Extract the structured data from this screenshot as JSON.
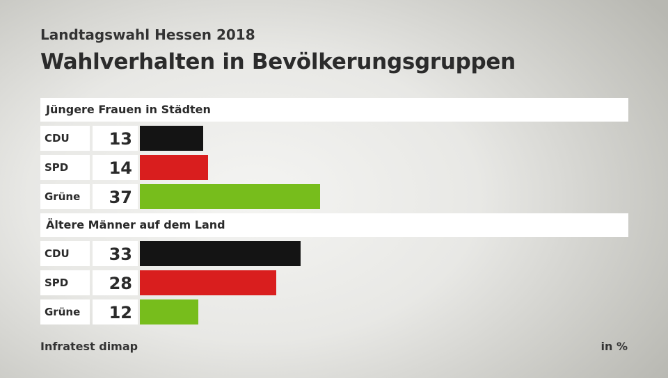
{
  "header": {
    "supertitle": "Landtagswahl Hessen 2018",
    "title": "Wahlverhalten in Bevölkerungsgruppen"
  },
  "footer": {
    "source": "Infratest dimap",
    "unit": "in %"
  },
  "colors": {
    "CDU": "#141414",
    "SPD": "#d91e1e",
    "Grüne": "#77bd1c"
  },
  "chart_data": {
    "type": "bar",
    "orientation": "horizontal",
    "title": "Wahlverhalten in Bevölkerungsgruppen",
    "unit": "in %",
    "groups": [
      {
        "name": "Jüngere Frauen in Städten",
        "categories": [
          "CDU",
          "SPD",
          "Grüne"
        ],
        "values": [
          13,
          14,
          37
        ]
      },
      {
        "name": "Ältere Männer auf dem Land",
        "categories": [
          "CDU",
          "SPD",
          "Grüne"
        ],
        "values": [
          33,
          28,
          12
        ]
      }
    ]
  }
}
